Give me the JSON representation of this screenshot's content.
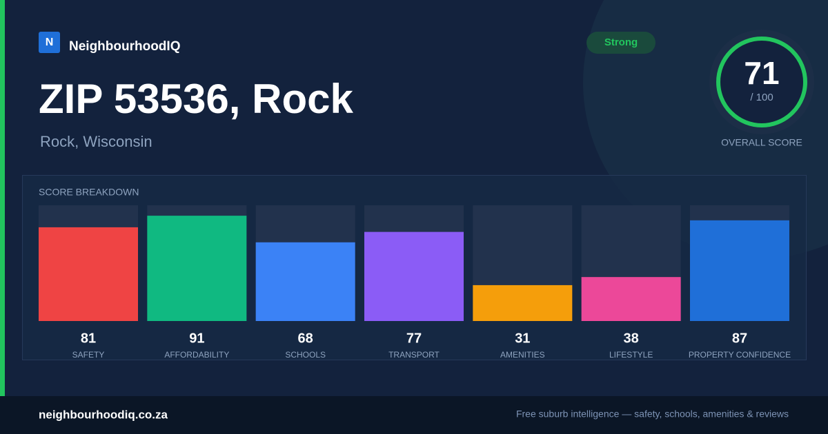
{
  "brand": {
    "logo": "N",
    "name": "NeighbourhoodIQ"
  },
  "header": {
    "title": "ZIP 53536, Rock",
    "subtitle": "Rock, Wisconsin",
    "badge": "Strong"
  },
  "score": {
    "value": "71",
    "out_of": "/ 100",
    "label": "OVERALL SCORE"
  },
  "chart_data": {
    "type": "bar",
    "title": "SCORE BREAKDOWN",
    "categories": [
      "SAFETY",
      "AFFORDABILITY",
      "SCHOOLS",
      "TRANSPORT",
      "AMENITIES",
      "LIFESTYLE",
      "PROPERTY CONFIDENCE"
    ],
    "values": [
      81,
      91,
      68,
      77,
      31,
      38,
      87
    ],
    "colors": [
      "#ef4444",
      "#10b981",
      "#3b82f6",
      "#8b5cf6",
      "#f59e0b",
      "#ec4899",
      "#1f6fd8"
    ],
    "ylim": [
      0,
      100
    ]
  },
  "footer": {
    "site": "neighbourhoodiq.co.za",
    "tagline": "Free suburb intelligence — safety, schools, amenities & reviews"
  }
}
